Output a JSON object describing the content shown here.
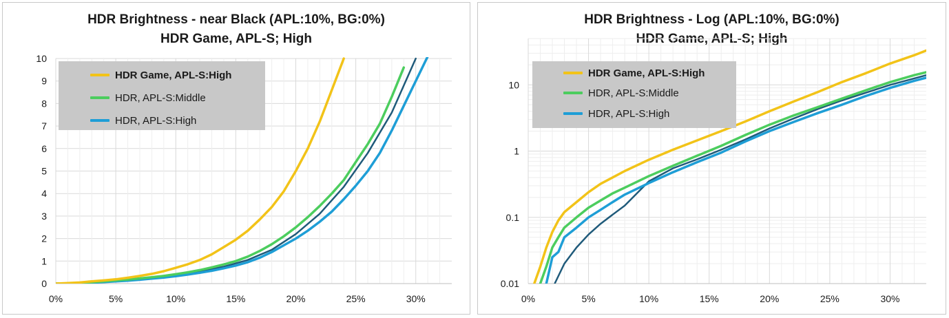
{
  "colors": {
    "game_high": "#f2c318",
    "hdr_middle": "#4ccd5e",
    "hdr_high": "#1e9ed6",
    "reference": "#1f5a7a",
    "grid": "#d9d9d9",
    "legend_bg": "#c8c8c8"
  },
  "charts": [
    {
      "title_line1": "HDR Brightness - near Black (APL:10%,  BG:0%)",
      "title_line2": "HDR Game, APL-S; High",
      "legend": [
        "HDR Game, APL-S:High",
        "HDR, APL-S:Middle",
        "HDR, APL-S:High"
      ]
    },
    {
      "title_line1": "HDR Brightness - Log (APL:10%,  BG:0%)",
      "title_line2": "HDR Game, APL-S; High",
      "legend": [
        "HDR Game, APL-S:High",
        "HDR, APL-S:Middle",
        "HDR, APL-S:High"
      ]
    }
  ],
  "chart_data": [
    {
      "type": "line",
      "title": "HDR Brightness - near Black (APL:10%,  BG:0%)",
      "subtitle": "HDR Game, APL-S; High",
      "xlim": [
        0,
        33
      ],
      "ylim": [
        0,
        10
      ],
      "x_ticks": [
        0,
        5,
        10,
        15,
        20,
        25,
        30
      ],
      "x_tick_labels": [
        "0%",
        "5%",
        "10%",
        "15%",
        "20%",
        "25%",
        "30%"
      ],
      "y_ticks": [
        0,
        1,
        2,
        3,
        4,
        5,
        6,
        7,
        8,
        9,
        10
      ],
      "y_tick_labels": [
        "0",
        "1",
        "2",
        "3",
        "4",
        "5",
        "6",
        "7",
        "8",
        "9",
        "10"
      ],
      "grid": true,
      "legend_position": "top-left",
      "series": [
        {
          "name": "HDR Game, APL-S:High",
          "color_key": "game_high",
          "x": [
            0,
            1,
            2,
            3,
            4,
            5,
            6,
            7,
            8,
            9,
            10,
            11,
            12,
            13,
            14,
            15,
            16,
            17,
            18,
            19,
            20,
            21,
            22,
            23,
            24
          ],
          "y": [
            0,
            0.02,
            0.05,
            0.1,
            0.14,
            0.19,
            0.26,
            0.34,
            0.43,
            0.55,
            0.7,
            0.86,
            1.05,
            1.3,
            1.62,
            1.95,
            2.35,
            2.85,
            3.4,
            4.1,
            5.0,
            6.0,
            7.2,
            8.6,
            10.0
          ]
        },
        {
          "name": "HDR, APL-S:Middle",
          "color_key": "hdr_middle",
          "x": [
            0,
            1,
            2,
            3,
            4,
            5,
            6,
            7,
            8,
            9,
            10,
            11,
            12,
            13,
            14,
            15,
            16,
            17,
            18,
            19,
            20,
            21,
            22,
            23,
            24,
            25,
            26,
            27,
            28,
            29
          ],
          "y": [
            0,
            0.01,
            0.03,
            0.06,
            0.1,
            0.14,
            0.18,
            0.23,
            0.28,
            0.34,
            0.42,
            0.5,
            0.6,
            0.72,
            0.85,
            1.0,
            1.2,
            1.45,
            1.75,
            2.1,
            2.5,
            2.95,
            3.45,
            4.0,
            4.6,
            5.4,
            6.2,
            7.1,
            8.3,
            9.6
          ]
        },
        {
          "name": "HDR, APL-S:High",
          "color_key": "hdr_high",
          "x": [
            0,
            1,
            2,
            3,
            4,
            5,
            6,
            7,
            8,
            9,
            10,
            11,
            12,
            13,
            14,
            15,
            16,
            17,
            18,
            19,
            20,
            21,
            22,
            23,
            24,
            25,
            26,
            27,
            28,
            29,
            30,
            31
          ],
          "y": [
            0,
            0.01,
            0.02,
            0.04,
            0.07,
            0.1,
            0.13,
            0.17,
            0.22,
            0.27,
            0.33,
            0.4,
            0.48,
            0.57,
            0.68,
            0.8,
            0.95,
            1.15,
            1.4,
            1.7,
            2.0,
            2.35,
            2.75,
            3.2,
            3.75,
            4.35,
            5.0,
            5.8,
            6.8,
            7.9,
            9.0,
            10.1
          ]
        },
        {
          "color_key": "reference",
          "x": [
            0,
            2,
            4,
            6,
            8,
            10,
            12,
            14,
            16,
            18,
            20,
            22,
            24,
            26,
            28,
            30
          ],
          "y": [
            0,
            0.02,
            0.06,
            0.14,
            0.26,
            0.38,
            0.55,
            0.75,
            1.05,
            1.5,
            2.2,
            3.1,
            4.3,
            5.8,
            7.6,
            10.0
          ]
        }
      ]
    },
    {
      "type": "line",
      "title": "HDR Brightness - Log (APL:10%,  BG:0%)",
      "subtitle": "HDR Game, APL-S; High",
      "xlim": [
        0,
        33
      ],
      "ylim": [
        0.01,
        50
      ],
      "y_scale": "log",
      "x_ticks": [
        0,
        5,
        10,
        15,
        20,
        25,
        30
      ],
      "x_tick_labels": [
        "0%",
        "5%",
        "10%",
        "15%",
        "20%",
        "25%",
        "30%"
      ],
      "y_ticks": [
        0.01,
        0.1,
        1,
        10
      ],
      "y_tick_labels": [
        "0.01",
        "0.1",
        "1",
        "10"
      ],
      "grid": true,
      "legend_position": "top-left",
      "series": [
        {
          "name": "HDR Game, APL-S:High",
          "color_key": "game_high",
          "x": [
            0.5,
            1,
            1.5,
            2,
            2.5,
            3,
            4,
            5,
            6,
            7,
            8,
            10,
            12,
            14,
            16,
            18,
            20,
            22,
            24,
            26,
            28,
            30,
            32,
            33
          ],
          "y": [
            0.01,
            0.018,
            0.035,
            0.06,
            0.09,
            0.12,
            0.17,
            0.24,
            0.32,
            0.4,
            0.5,
            0.74,
            1.05,
            1.45,
            2.0,
            2.8,
            4.0,
            5.6,
            7.8,
            11.0,
            15.0,
            21.0,
            28.0,
            33.0
          ]
        },
        {
          "name": "HDR, APL-S:Middle",
          "color_key": "hdr_middle",
          "x": [
            1,
            1.5,
            2,
            2.5,
            3,
            4,
            5,
            6,
            7,
            8,
            10,
            12,
            14,
            16,
            18,
            20,
            22,
            24,
            26,
            28,
            30,
            32,
            33
          ],
          "y": [
            0.01,
            0.018,
            0.035,
            0.05,
            0.07,
            0.1,
            0.14,
            0.18,
            0.23,
            0.28,
            0.42,
            0.6,
            0.85,
            1.2,
            1.75,
            2.5,
            3.45,
            4.6,
            6.2,
            8.3,
            11.0,
            14.0,
            15.5
          ]
        },
        {
          "name": "HDR, APL-S:High",
          "color_key": "hdr_high",
          "x": [
            1.5,
            2,
            2.5,
            3,
            4,
            5,
            6,
            7,
            8,
            10,
            12,
            14,
            16,
            18,
            20,
            22,
            24,
            26,
            28,
            30,
            32,
            33
          ],
          "y": [
            0.01,
            0.025,
            0.03,
            0.05,
            0.07,
            0.1,
            0.13,
            0.17,
            0.22,
            0.33,
            0.48,
            0.68,
            0.95,
            1.4,
            2.0,
            2.75,
            3.75,
            5.0,
            6.8,
            9.0,
            11.5,
            12.8
          ]
        },
        {
          "color_key": "reference",
          "x": [
            2.2,
            2.5,
            3,
            4,
            5,
            6,
            7,
            8,
            10,
            12,
            14,
            16,
            18,
            20,
            22,
            24,
            26,
            28,
            30,
            32,
            33
          ],
          "y": [
            0.01,
            0.013,
            0.02,
            0.035,
            0.055,
            0.08,
            0.11,
            0.15,
            0.35,
            0.55,
            0.75,
            1.05,
            1.5,
            2.2,
            3.1,
            4.3,
            5.8,
            7.6,
            10.0,
            12.5,
            14.0
          ]
        }
      ]
    }
  ]
}
